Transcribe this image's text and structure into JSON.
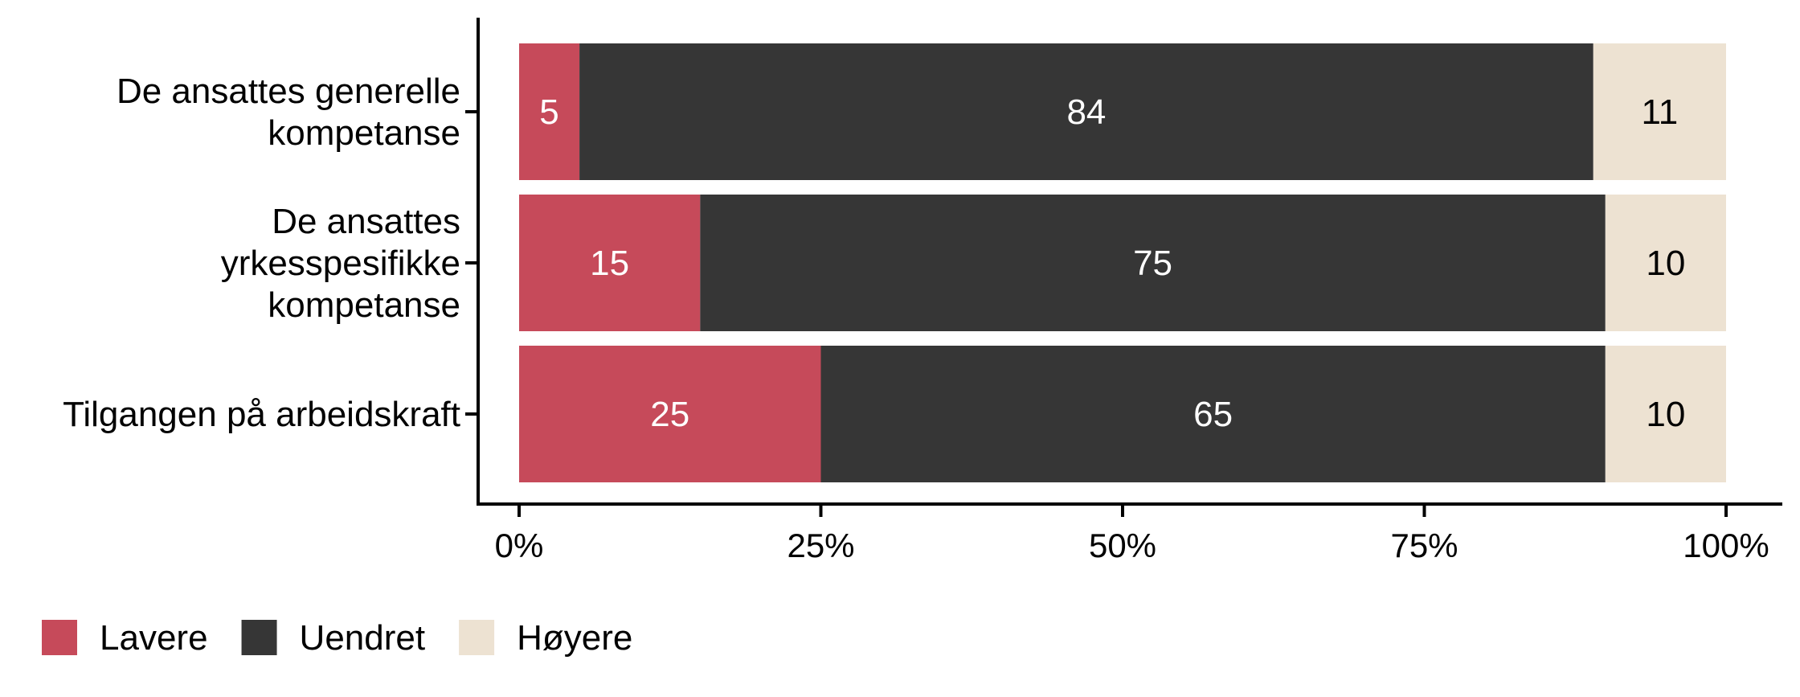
{
  "chart_data": {
    "type": "bar",
    "orientation": "horizontal",
    "stacked": true,
    "percent": true,
    "categories": [
      [
        "De ansattes generelle",
        "kompetanse"
      ],
      [
        "De ansattes",
        "yrkesspesifikke",
        "kompetanse"
      ],
      [
        "Tilgangen på arbeidskraft"
      ]
    ],
    "series": [
      {
        "name": "Lavere",
        "values": [
          5,
          15,
          25
        ],
        "color": "#c64a5a",
        "label_color": "#ffffff"
      },
      {
        "name": "Uendret",
        "values": [
          84,
          75,
          65
        ],
        "color": "#363636",
        "label_color": "#ffffff"
      },
      {
        "name": "Høyere",
        "values": [
          11,
          10,
          10
        ],
        "color": "#ede2d2",
        "label_color": "#000000"
      }
    ],
    "xlim": [
      0,
      100
    ],
    "x_ticks": [
      {
        "value": 0,
        "label": "0%"
      },
      {
        "value": 25,
        "label": "25%"
      },
      {
        "value": 50,
        "label": "50%"
      },
      {
        "value": 75,
        "label": "75%"
      },
      {
        "value": 100,
        "label": "100%"
      }
    ],
    "title": "",
    "xlabel": "",
    "ylabel": "",
    "grid": false,
    "legend_position": "bottom-left"
  }
}
